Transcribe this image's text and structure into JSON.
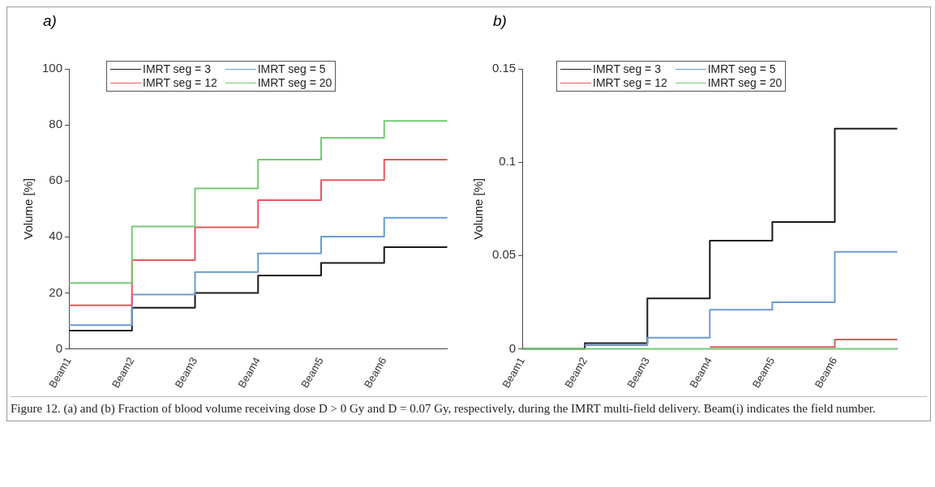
{
  "chart_data": [
    {
      "type": "step",
      "title": "a)",
      "ylabel": "Volume [%]",
      "categories": [
        "Beam1",
        "Beam2",
        "Beam3",
        "Beam4",
        "Beam5",
        "Beam6",
        null
      ],
      "ylim": [
        0,
        100
      ],
      "yticks": [
        0,
        20,
        40,
        60,
        80,
        100
      ],
      "grid": false,
      "legend": "top left",
      "series": [
        {
          "name": "IMRT seg = 3",
          "color": "#1a1a1a",
          "values": [
            6.5,
            14.7,
            20,
            26.2,
            30.7,
            36.3,
            36.3
          ]
        },
        {
          "name": "IMRT seg = 5",
          "color": "#6b9bd2",
          "values": [
            8.5,
            19.4,
            27.4,
            34.1,
            40.1,
            46.8,
            46.8
          ]
        },
        {
          "name": "IMRT seg = 12",
          "color": "#e8575c",
          "values": [
            15.6,
            31.7,
            43.4,
            53.1,
            60.3,
            67.6,
            67.6
          ]
        },
        {
          "name": "IMRT seg = 20",
          "color": "#74c974",
          "values": [
            23.5,
            43.7,
            57.3,
            67.6,
            75.4,
            81.4,
            81.4
          ]
        }
      ]
    },
    {
      "type": "step",
      "title": "b)",
      "ylabel": "Volume [%]",
      "categories": [
        "Beam1",
        "Beam2",
        "Beam3",
        "Beam4",
        "Beam5",
        "Beam6",
        null
      ],
      "ylim": [
        0,
        0.15
      ],
      "yticks": [
        0,
        0.05,
        0.1,
        0.15
      ],
      "grid": false,
      "legend": "top left",
      "annotations": [
        "Figure 12. (a) and (b) Fraction of blood volume receiving dose D > 0 Gy and D = 0.07 Gy, respectively, during the IMRT multi-field delivery. Beam(i) indicates the field number."
      ],
      "series": [
        {
          "name": "IMRT seg = 3",
          "color": "#1a1a1a",
          "values": [
            0,
            0.003,
            0.027,
            0.058,
            0.068,
            0.118,
            0.118
          ]
        },
        {
          "name": "IMRT seg = 5",
          "color": "#6b9bd2",
          "values": [
            null,
            0.002,
            0.006,
            0.021,
            0.025,
            0.052,
            0.052
          ]
        },
        {
          "name": "IMRT seg = 12",
          "color": "#e8575c",
          "values": [
            null,
            null,
            null,
            0.001,
            0.001,
            0.005,
            0.005
          ]
        },
        {
          "name": "IMRT seg = 20",
          "color": "#74c974",
          "values": [
            0,
            0,
            0,
            0,
            0,
            0,
            0
          ]
        }
      ]
    }
  ]
}
